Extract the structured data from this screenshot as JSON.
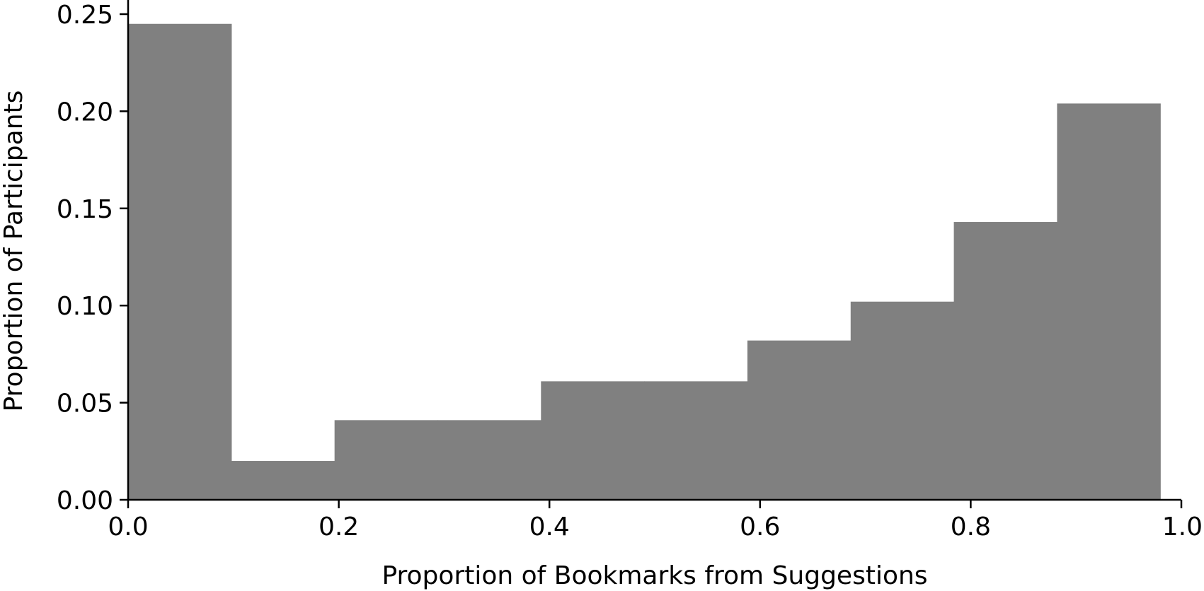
{
  "chart_data": {
    "type": "bar",
    "subtype": "histogram",
    "title": "",
    "xlabel": "Proportion of Bookmarks from Suggestions",
    "ylabel": "Proportion of Participants",
    "xlim": [
      0.0,
      1.0
    ],
    "ylim": [
      0.0,
      0.25
    ],
    "grid": false,
    "bar_color": "#808080",
    "bins": [
      {
        "x0": 0.0,
        "x1": 0.098,
        "value": 0.245
      },
      {
        "x0": 0.098,
        "x1": 0.196,
        "value": 0.02
      },
      {
        "x0": 0.196,
        "x1": 0.294,
        "value": 0.041
      },
      {
        "x0": 0.294,
        "x1": 0.392,
        "value": 0.041
      },
      {
        "x0": 0.392,
        "x1": 0.49,
        "value": 0.061
      },
      {
        "x0": 0.49,
        "x1": 0.588,
        "value": 0.061
      },
      {
        "x0": 0.588,
        "x1": 0.686,
        "value": 0.082
      },
      {
        "x0": 0.686,
        "x1": 0.784,
        "value": 0.102
      },
      {
        "x0": 0.784,
        "x1": 0.882,
        "value": 0.143
      },
      {
        "x0": 0.882,
        "x1": 0.98,
        "value": 0.204
      }
    ],
    "xticks": [
      0.0,
      0.2,
      0.4,
      0.6,
      0.8,
      1.0
    ],
    "xtick_labels": [
      "0.0",
      "0.2",
      "0.4",
      "0.6",
      "0.8",
      "1.0"
    ],
    "yticks": [
      0.0,
      0.05,
      0.1,
      0.15,
      0.2,
      0.25
    ],
    "ytick_labels": [
      "0.00",
      "0.05",
      "0.10",
      "0.15",
      "0.20",
      "0.25"
    ]
  }
}
